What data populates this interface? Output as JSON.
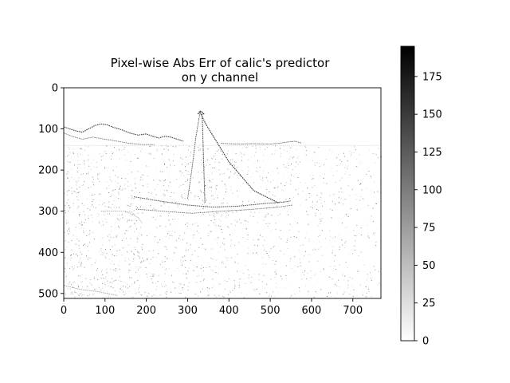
{
  "chart_data": {
    "type": "heatmap",
    "title_lines": [
      "Pixel-wise Abs Err of calic's predictor",
      "on y channel"
    ],
    "image_width": 768,
    "image_height": 512,
    "x_ticks": [
      0,
      100,
      200,
      300,
      400,
      500,
      600,
      700
    ],
    "y_ticks": [
      0,
      100,
      200,
      300,
      400,
      500
    ],
    "xlim": [
      0,
      768
    ],
    "ylim": [
      512,
      0
    ],
    "colormap": "gray_r",
    "colorbar": {
      "min": 0,
      "max": 195,
      "ticks": [
        0,
        25,
        50,
        75,
        100,
        125,
        150,
        175
      ],
      "color_low": "#ffffff",
      "color_high": "#000000"
    },
    "content_description": "Sparse dark edge outlines on white: island/hill silhouette near y≈100-180, a tall sail/mast triangle peaking near x≈330 y≈60, a boat hull around x≈180-550 y≈270-300, fine noise texture below the horizon (y≈140) especially on the left."
  }
}
